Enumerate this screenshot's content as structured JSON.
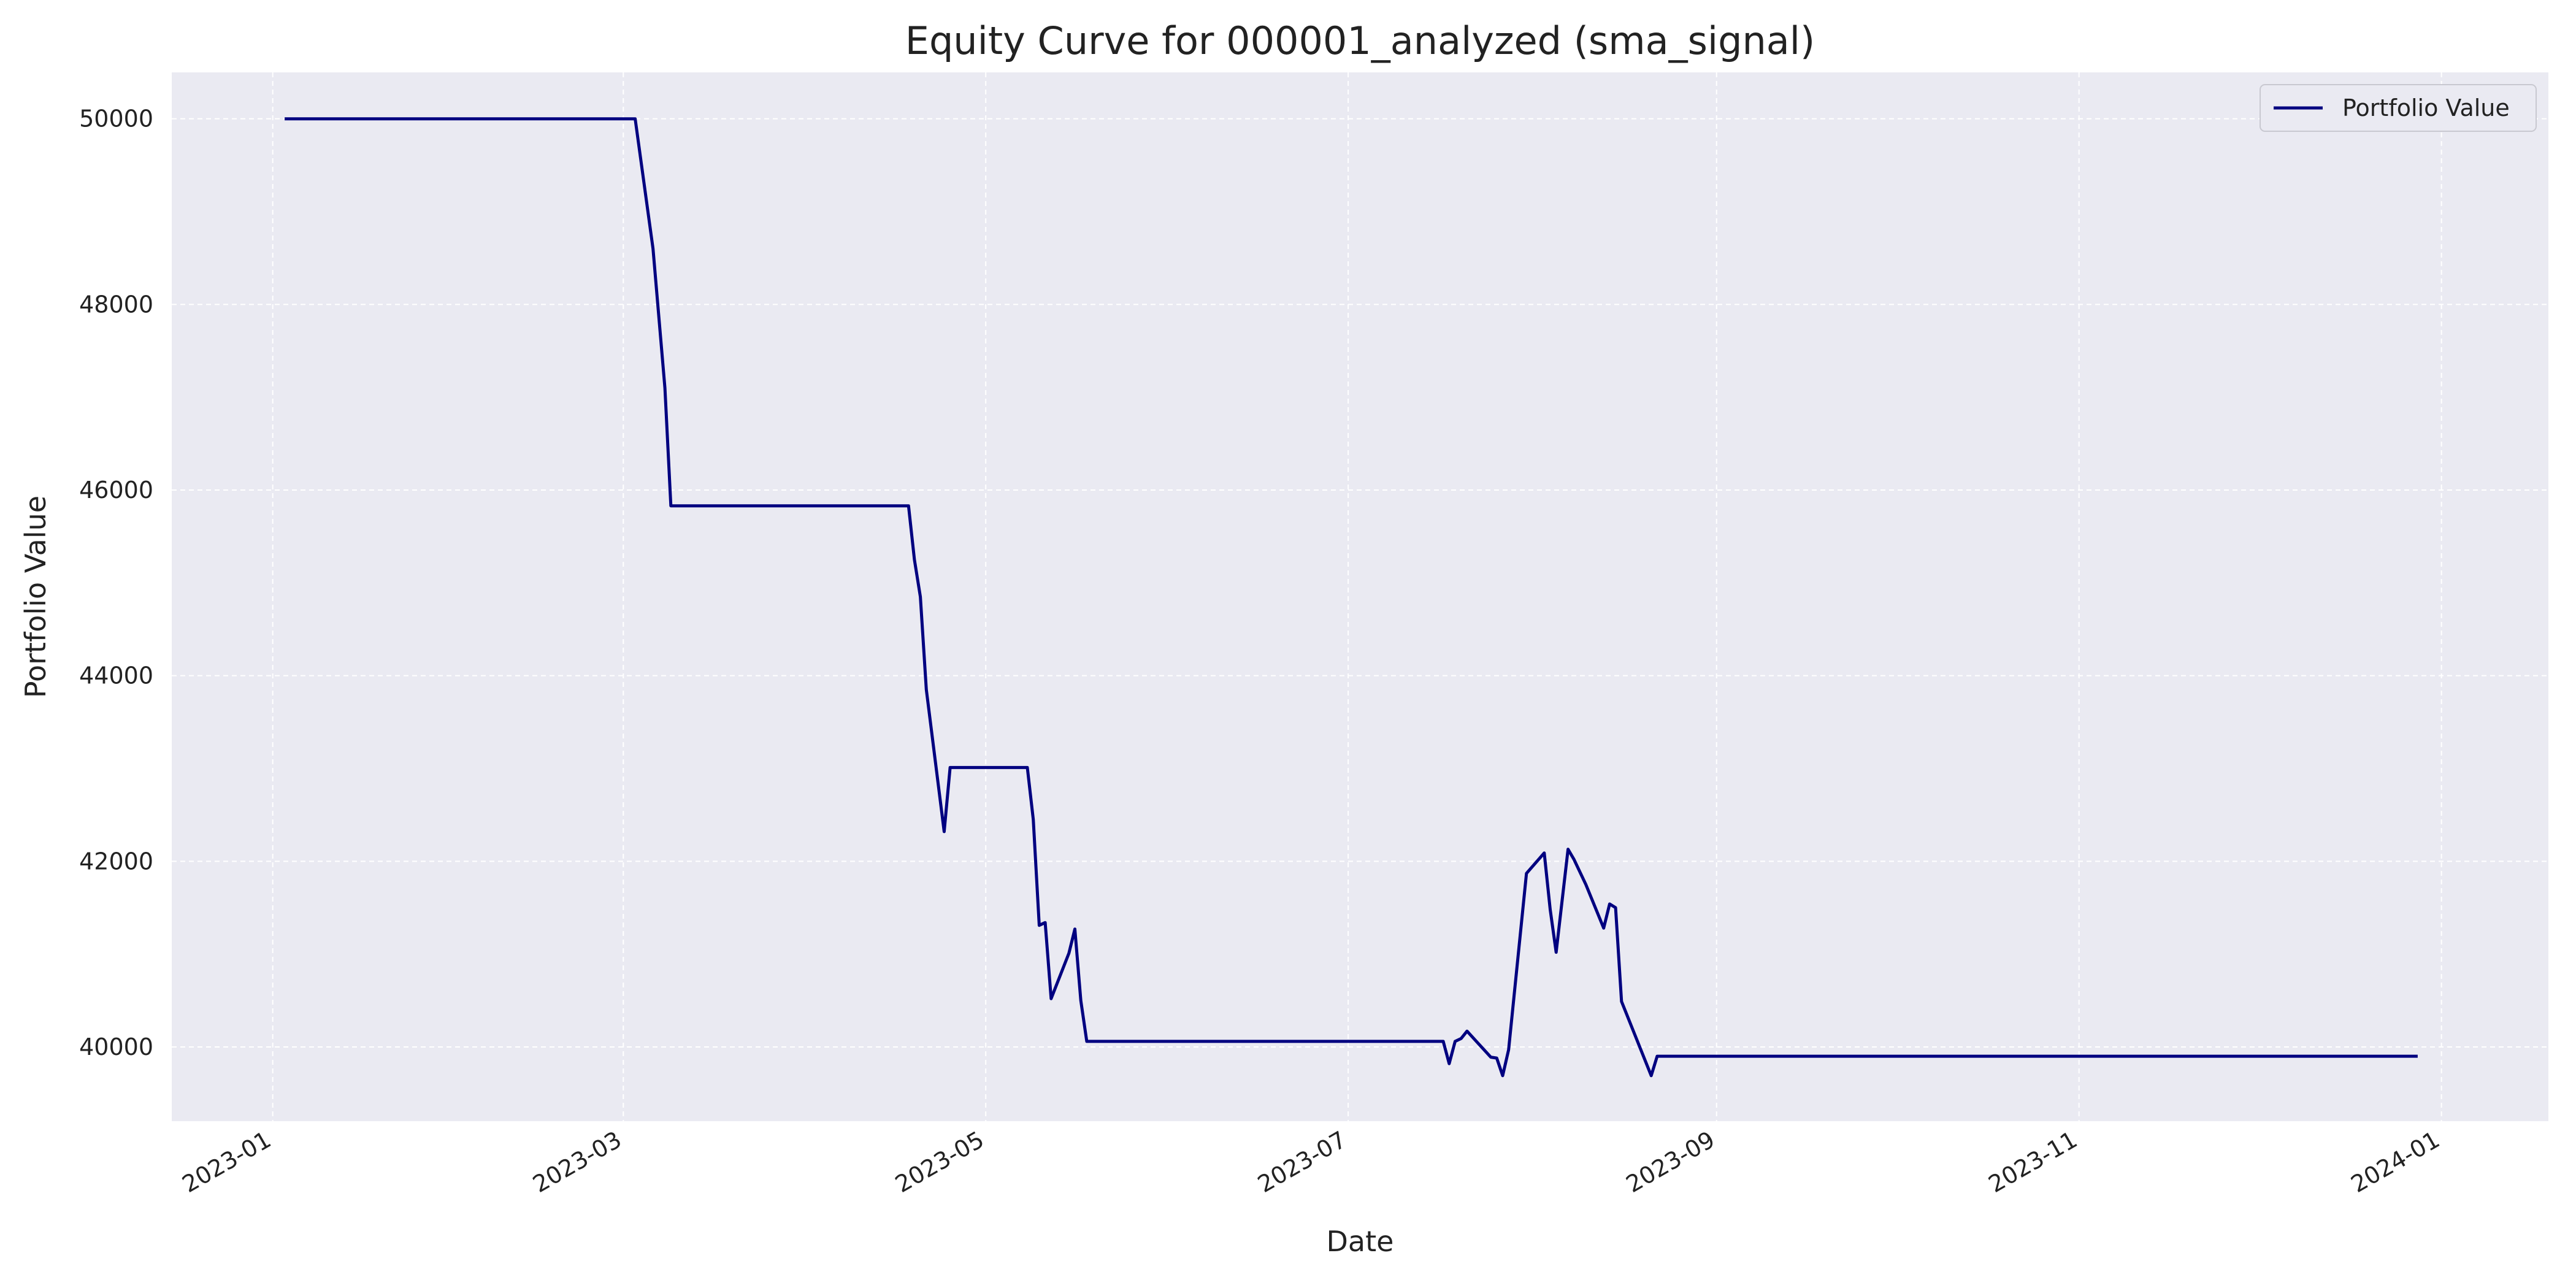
{
  "chart_data": {
    "type": "line",
    "title": "Equity Curve for 000001_analyzed (sma_signal)",
    "xlabel": "Date",
    "ylabel": "Portfolio Value",
    "xlim": [
      "2022-12-15",
      "2024-01-19"
    ],
    "ylim": [
      39200,
      50500
    ],
    "x_ticks": [
      "2023-01",
      "2023-03",
      "2023-05",
      "2023-07",
      "2023-09",
      "2023-11",
      "2024-01"
    ],
    "y_ticks": [
      40000,
      42000,
      44000,
      46000,
      48000,
      50000
    ],
    "grid": true,
    "legend_position": "top-right",
    "colors": {
      "line": "#000080",
      "plot_background": "#eaeaf2",
      "grid": "#ffffff"
    },
    "series": [
      {
        "name": "Portfolio Value",
        "points": [
          [
            "2023-01-03",
            50000
          ],
          [
            "2023-03-03",
            50000
          ],
          [
            "2023-03-06",
            48600
          ],
          [
            "2023-03-08",
            47100
          ],
          [
            "2023-03-09",
            45830
          ],
          [
            "2023-04-18",
            45830
          ],
          [
            "2023-04-19",
            45250
          ],
          [
            "2023-04-20",
            44850
          ],
          [
            "2023-04-21",
            43850
          ],
          [
            "2023-04-24",
            42320
          ],
          [
            "2023-04-25",
            43010
          ],
          [
            "2023-05-08",
            43010
          ],
          [
            "2023-05-09",
            42450
          ],
          [
            "2023-05-10",
            41310
          ],
          [
            "2023-05-11",
            41340
          ],
          [
            "2023-05-12",
            40520
          ],
          [
            "2023-05-15",
            41010
          ],
          [
            "2023-05-16",
            41270
          ],
          [
            "2023-05-17",
            40500
          ],
          [
            "2023-05-18",
            40060
          ],
          [
            "2023-07-17",
            40060
          ],
          [
            "2023-07-18",
            39820
          ],
          [
            "2023-07-19",
            40060
          ],
          [
            "2023-07-20",
            40090
          ],
          [
            "2023-07-21",
            40170
          ],
          [
            "2023-07-25",
            39890
          ],
          [
            "2023-07-26",
            39880
          ],
          [
            "2023-07-27",
            39690
          ],
          [
            "2023-07-28",
            39970
          ],
          [
            "2023-07-31",
            41870
          ],
          [
            "2023-08-03",
            42090
          ],
          [
            "2023-08-04",
            41480
          ],
          [
            "2023-08-05",
            41020
          ],
          [
            "2023-08-07",
            42130
          ],
          [
            "2023-08-08",
            42020
          ],
          [
            "2023-08-10",
            41750
          ],
          [
            "2023-08-13",
            41280
          ],
          [
            "2023-08-14",
            41540
          ],
          [
            "2023-08-15",
            41500
          ],
          [
            "2023-08-16",
            40490
          ],
          [
            "2023-08-21",
            39690
          ],
          [
            "2023-08-22",
            39900
          ],
          [
            "2023-12-28",
            39900
          ]
        ]
      }
    ]
  }
}
